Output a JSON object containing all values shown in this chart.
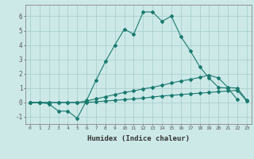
{
  "xlabel": "Humidex (Indice chaleur)",
  "bg_color": "#cce9e8",
  "grid_color": "#aacfce",
  "line_color": "#1a7a6e",
  "xlim": [
    -0.5,
    23.5
  ],
  "ylim": [
    -1.5,
    6.8
  ],
  "xticks": [
    0,
    1,
    2,
    3,
    4,
    5,
    6,
    7,
    8,
    9,
    10,
    11,
    12,
    13,
    14,
    15,
    16,
    17,
    18,
    19,
    20,
    21,
    22,
    23
  ],
  "yticks": [
    -1,
    0,
    1,
    2,
    3,
    4,
    5,
    6
  ],
  "series1_x": [
    0,
    1,
    2,
    3,
    4,
    5,
    6,
    7,
    8,
    9,
    10,
    11,
    12,
    13,
    14,
    15,
    16,
    17,
    18,
    19,
    20,
    21,
    22
  ],
  "series1_y": [
    0.0,
    0.0,
    -0.1,
    -0.6,
    -0.6,
    -1.1,
    0.15,
    1.55,
    2.85,
    4.0,
    5.1,
    4.75,
    6.3,
    6.3,
    5.65,
    6.0,
    4.6,
    3.6,
    2.5,
    1.7,
    1.05,
    1.0,
    0.2
  ],
  "series2_x": [
    0,
    1,
    2,
    3,
    4,
    5,
    6,
    7,
    8,
    9,
    10,
    11,
    12,
    13,
    14,
    15,
    16,
    17,
    18,
    19,
    20,
    21,
    22,
    23
  ],
  "series2_y": [
    0.0,
    0.0,
    0.0,
    0.0,
    0.0,
    0.0,
    0.1,
    0.25,
    0.4,
    0.55,
    0.7,
    0.8,
    0.95,
    1.05,
    1.2,
    1.35,
    1.5,
    1.6,
    1.75,
    1.9,
    1.7,
    1.05,
    1.0,
    0.15
  ],
  "series3_x": [
    0,
    1,
    2,
    3,
    4,
    5,
    6,
    7,
    8,
    9,
    10,
    11,
    12,
    13,
    14,
    15,
    16,
    17,
    18,
    19,
    20,
    21,
    22,
    23
  ],
  "series3_y": [
    0.0,
    0.0,
    0.0,
    0.0,
    0.0,
    0.0,
    0.0,
    0.05,
    0.1,
    0.15,
    0.2,
    0.25,
    0.3,
    0.38,
    0.45,
    0.5,
    0.55,
    0.6,
    0.65,
    0.7,
    0.75,
    0.8,
    0.85,
    0.1
  ]
}
